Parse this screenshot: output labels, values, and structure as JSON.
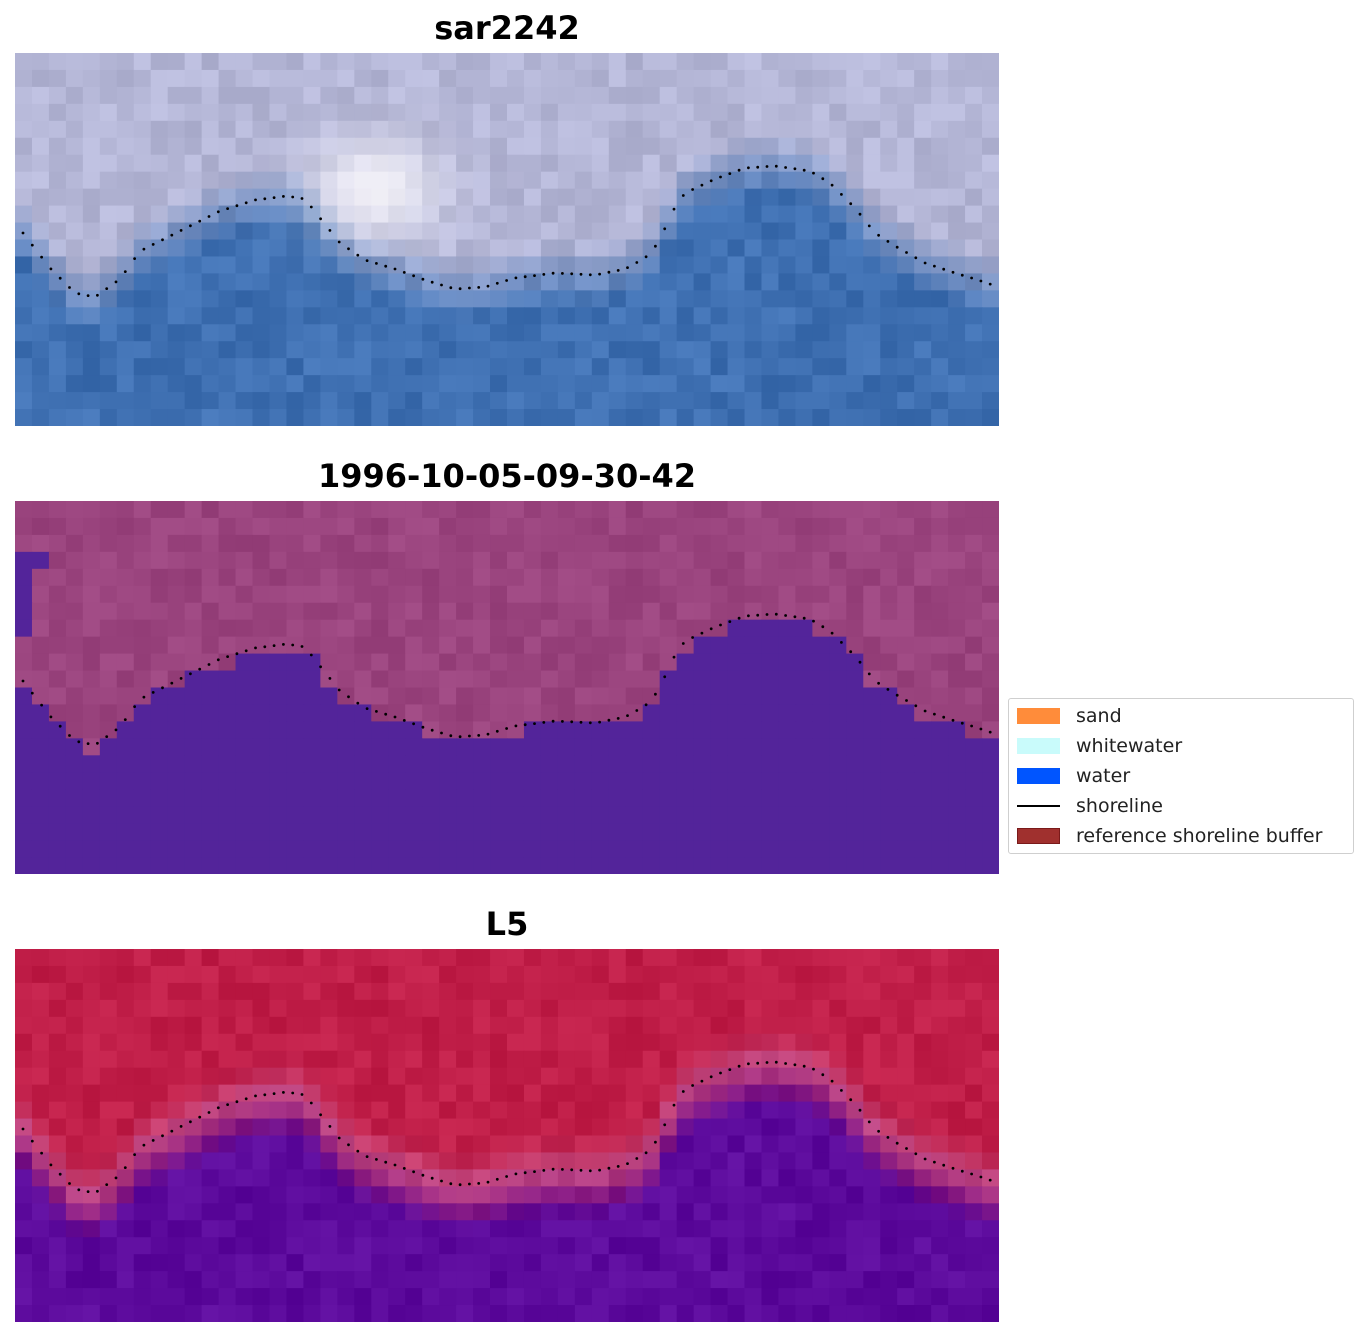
{
  "panels": [
    {
      "title": "sar2242",
      "style": "rgb"
    },
    {
      "title": "1996-10-05-09-30-42",
      "style": "classified"
    },
    {
      "title": "L5",
      "style": "index"
    }
  ],
  "legend": {
    "items": [
      {
        "label": "sand",
        "color": "#ff8c3a",
        "kind": "patch"
      },
      {
        "label": "whitewater",
        "color": "#c9fbfb",
        "kind": "patch"
      },
      {
        "label": "water",
        "color": "#0055ff",
        "kind": "patch"
      },
      {
        "label": "shoreline",
        "color": "#000000",
        "kind": "line"
      },
      {
        "label": "reference shoreline buffer",
        "color": "#a0302e",
        "kind": "patch"
      }
    ]
  },
  "colors": {
    "water_blue": "#3f70b2",
    "land_lavender": "#b4b6d6",
    "class_water": "#53249a",
    "class_land": "#9a447e",
    "index_land": "#c01e48",
    "index_water": "#5c0a9c",
    "shoreline_dots": "#000000"
  }
}
